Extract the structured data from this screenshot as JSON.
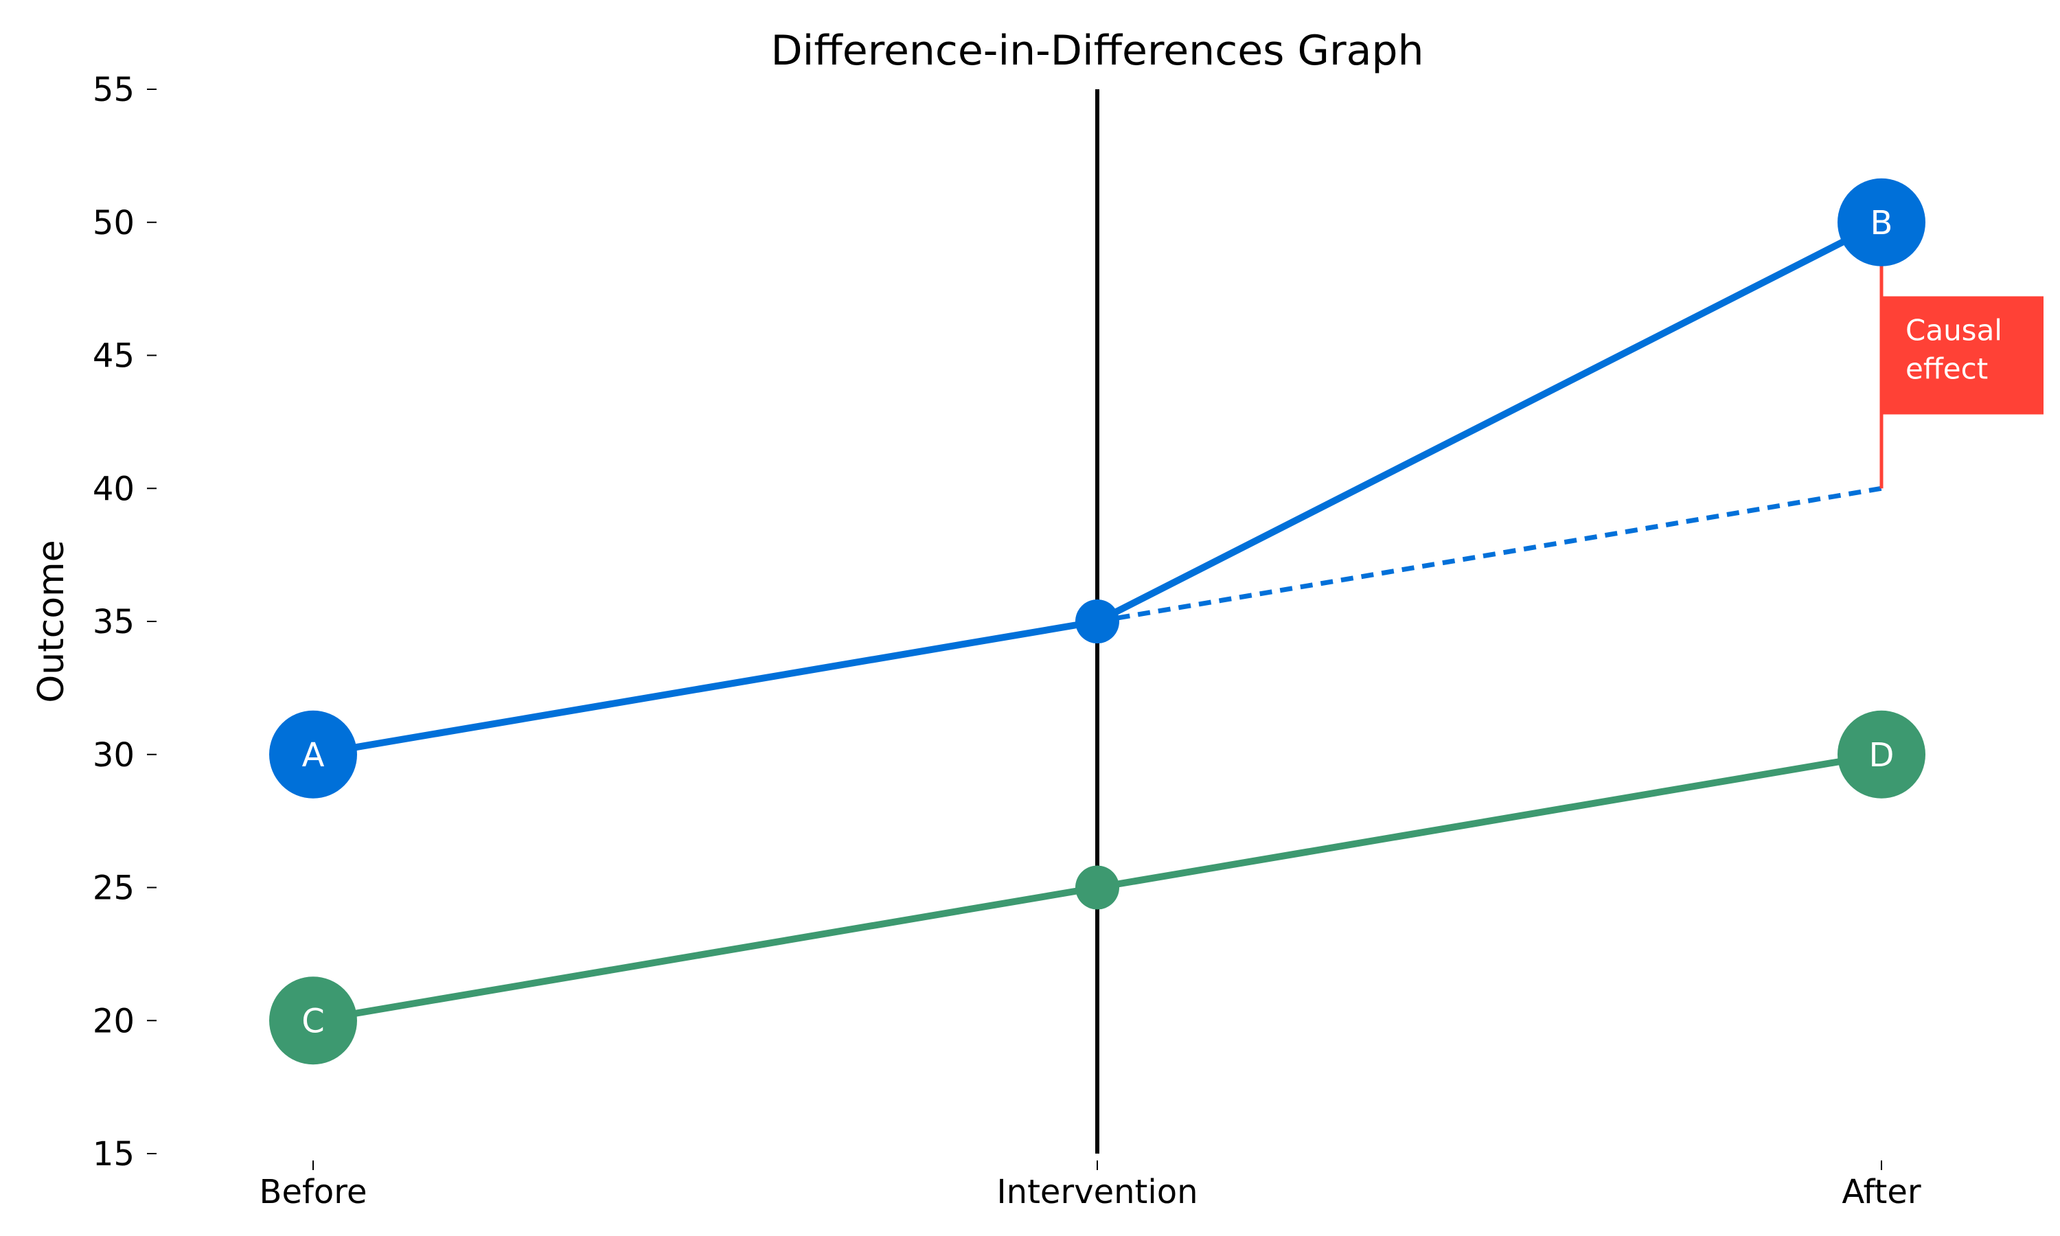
{
  "chart_data": {
    "type": "line",
    "title": "Difference-in-Differences Graph",
    "xlabel": "",
    "ylabel": "Outcome",
    "categories": [
      "Before",
      "Intervention",
      "After"
    ],
    "ylim": [
      15,
      55
    ],
    "yticks": [
      15,
      20,
      25,
      30,
      35,
      40,
      45,
      50,
      55
    ],
    "grid": false,
    "intervention_line_at": "Intervention",
    "series": [
      {
        "values": [
          30,
          35,
          50
        ],
        "color": "#0070d9",
        "point_labels": [
          "A",
          "",
          "B"
        ]
      },
      {
        "values": [
          20,
          25,
          30
        ],
        "color": "#3d9970",
        "point_labels": [
          "C",
          "",
          "D"
        ]
      },
      {
        "values": [
          null,
          35,
          40
        ],
        "color": "#0070d9",
        "style": "dashed",
        "point_labels": [
          "",
          "",
          ""
        ]
      }
    ],
    "annotation": {
      "text_lines": [
        "Causal",
        "effect"
      ],
      "at": "After",
      "from_value": 40,
      "to_value": 50,
      "color": "#ff4136"
    }
  }
}
